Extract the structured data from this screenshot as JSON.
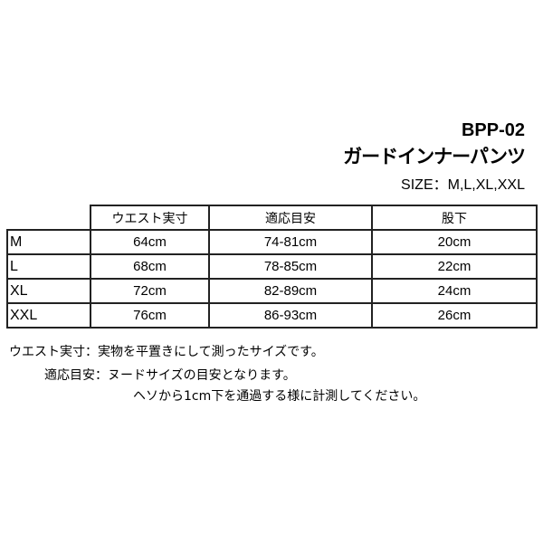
{
  "product": {
    "code": "BPP-02",
    "name": "ガードインナーパンツ",
    "sizes": "SIZE：M,L,XL,XXL"
  },
  "table": {
    "headers": [
      "",
      "ウエスト実寸",
      "適応目安",
      "股下"
    ],
    "rows": [
      [
        "M",
        "64cm",
        "74-81cm",
        "20cm"
      ],
      [
        "L",
        "68cm",
        "78-85cm",
        "22cm"
      ],
      [
        "XL",
        "72cm",
        "82-89cm",
        "24cm"
      ],
      [
        "XXL",
        "76cm",
        "86-93cm",
        "26cm"
      ]
    ]
  },
  "notes": [
    {
      "label": "ウエスト実寸：",
      "text": "実物を平置きにして測ったサイズです。"
    },
    {
      "label": "適応目安：",
      "text": "ヌードサイズの目安となります。",
      "text2": "ヘソから1cm下を通過する様に計測してください。"
    }
  ]
}
